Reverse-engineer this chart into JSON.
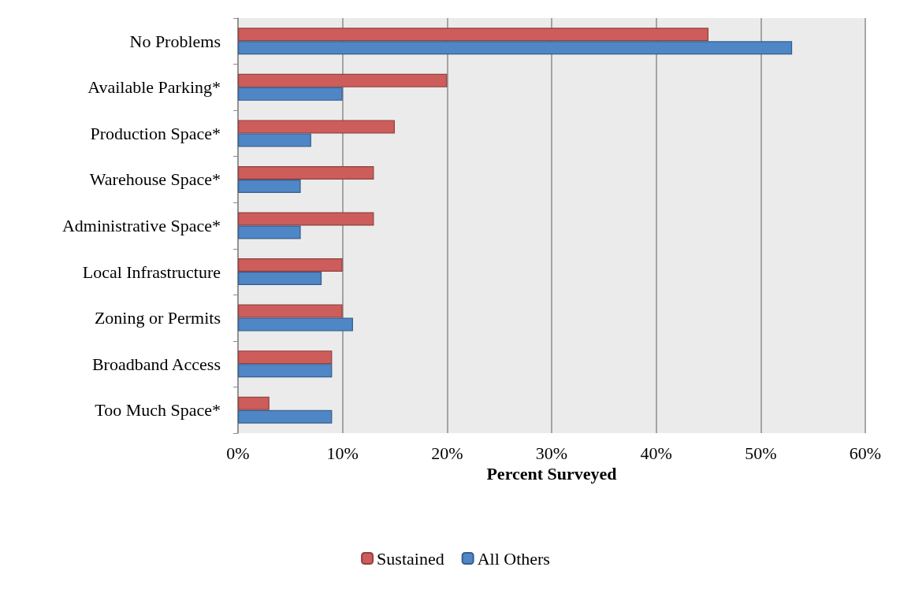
{
  "chart_data": {
    "type": "bar",
    "orientation": "horizontal",
    "xlabel": "Percent Surveyed",
    "categories": [
      "No Problems",
      "Available Parking*",
      "Production Space*",
      "Warehouse Space*",
      "Administrative Space*",
      "Local Infrastructure",
      "Zoning or Permits",
      "Broadband Access",
      "Too Much Space*"
    ],
    "series": [
      {
        "name": "Sustained",
        "color": "#cd5d5b",
        "values": [
          45,
          20,
          15,
          13,
          13,
          10,
          10,
          9,
          3
        ]
      },
      {
        "name": "All Others",
        "color": "#4f86c6",
        "values": [
          53,
          10,
          7,
          6,
          6,
          8,
          11,
          9,
          9
        ]
      }
    ],
    "xlim": [
      0,
      60
    ],
    "xticks": [
      {
        "value": 0,
        "label": "0%"
      },
      {
        "value": 10,
        "label": "10%"
      },
      {
        "value": 20,
        "label": "20%"
      },
      {
        "value": 30,
        "label": "30%"
      },
      {
        "value": 40,
        "label": "40%"
      },
      {
        "value": 50,
        "label": "50%"
      },
      {
        "value": 60,
        "label": "60%"
      }
    ],
    "grid": "x",
    "legend": "bottom"
  }
}
